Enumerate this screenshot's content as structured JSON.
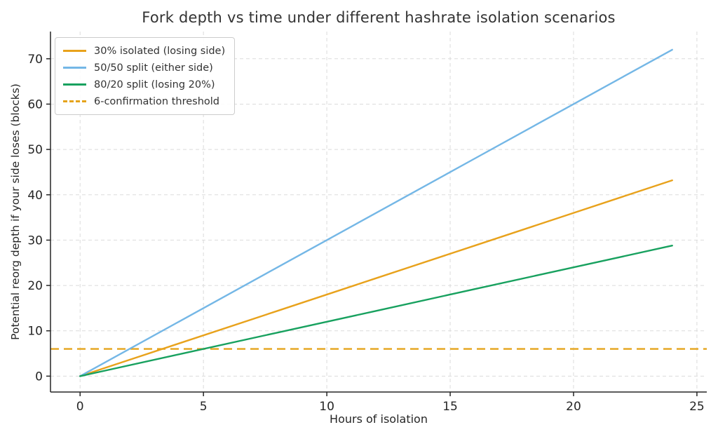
{
  "figure": {
    "background": "#FFFFFF",
    "axis_color": "#262626",
    "grid_color": "#DBDBDB",
    "title_color": "#333333"
  },
  "chart_data": {
    "type": "line",
    "title": "Fork depth vs time under different hashrate isolation scenarios",
    "xlabel": "Hours of isolation",
    "ylabel": "Potential reorg depth if your side loses (blocks)",
    "xlim": [
      -1.2,
      25.4
    ],
    "ylim": [
      -3.5,
      76
    ],
    "xticks": [
      0,
      5,
      10,
      15,
      20,
      25
    ],
    "yticks": [
      0,
      10,
      20,
      30,
      40,
      50,
      60,
      70
    ],
    "grid": true,
    "legend_position": "upper-left",
    "x": [
      0,
      4,
      8,
      12,
      16,
      20,
      24
    ],
    "series": [
      {
        "name": "30% isolated (losing side)",
        "color": "#E8A21C",
        "dash": false,
        "values": [
          0,
          7.2,
          14.4,
          21.6,
          28.8,
          36.0,
          43.2
        ]
      },
      {
        "name": "50/50 split (either side)",
        "color": "#74B7E6",
        "dash": false,
        "values": [
          0,
          12,
          24,
          36,
          48,
          60,
          72
        ]
      },
      {
        "name": "80/20 split (losing 20%)",
        "color": "#18A15F",
        "dash": false,
        "values": [
          0,
          4.8,
          9.6,
          14.4,
          19.2,
          24.0,
          28.8
        ]
      }
    ],
    "hline": {
      "name": "6-confirmation threshold",
      "y": 6,
      "color": "#E5A31B",
      "dash": true
    },
    "legend": [
      {
        "label": "30% isolated (losing side)",
        "color": "#E8A21C",
        "dash": false
      },
      {
        "label": "50/50 split (either side)",
        "color": "#74B7E6",
        "dash": false
      },
      {
        "label": "80/20 split (losing 20%)",
        "color": "#18A15F",
        "dash": false
      },
      {
        "label": "6-confirmation threshold",
        "color": "#E5A31B",
        "dash": true
      }
    ]
  }
}
